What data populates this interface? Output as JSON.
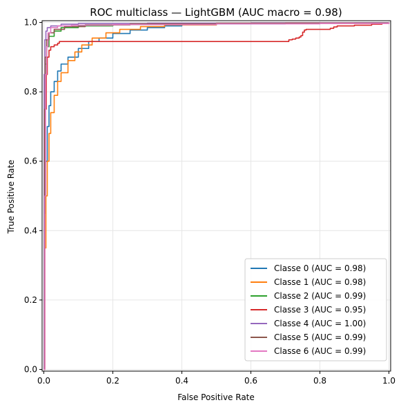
{
  "chart_data": {
    "type": "line",
    "title": "ROC multiclass — LightGBM (AUC macro = 0.98)",
    "xlabel": "False Positive Rate",
    "ylabel": "True Positive Rate",
    "xlim": [
      -0.005,
      1.005
    ],
    "ylim": [
      -0.005,
      1.005
    ],
    "x_ticks": [
      "0.0",
      "0.2",
      "0.4",
      "0.6",
      "0.8",
      "1.0"
    ],
    "y_ticks": [
      "0.0",
      "0.2",
      "0.4",
      "0.6",
      "0.8",
      "1.0"
    ],
    "x_tick_values": [
      0,
      0.2,
      0.4,
      0.6,
      0.8,
      1.0
    ],
    "y_tick_values": [
      0,
      0.2,
      0.4,
      0.6,
      0.8,
      1.0
    ],
    "grid": true,
    "legend_position": "lower-right",
    "series": [
      {
        "name": "Classe 0 (AUC = 0.98)",
        "color": "#1f77b4",
        "points": [
          [
            0,
            0
          ],
          [
            0.002,
            0.45
          ],
          [
            0.005,
            0.6
          ],
          [
            0.01,
            0.7
          ],
          [
            0.015,
            0.76
          ],
          [
            0.02,
            0.8
          ],
          [
            0.03,
            0.83
          ],
          [
            0.04,
            0.86
          ],
          [
            0.05,
            0.88
          ],
          [
            0.07,
            0.9
          ],
          [
            0.1,
            0.925
          ],
          [
            0.13,
            0.945
          ],
          [
            0.16,
            0.955
          ],
          [
            0.2,
            0.968
          ],
          [
            0.25,
            0.978
          ],
          [
            0.3,
            0.985
          ],
          [
            0.35,
            0.99
          ],
          [
            0.4,
            0.993
          ],
          [
            0.5,
            0.996
          ],
          [
            0.7,
            0.998
          ],
          [
            0.9,
            0.999
          ],
          [
            1.0,
            1.0
          ]
        ]
      },
      {
        "name": "Classe 1 (AUC = 0.98)",
        "color": "#ff7f0e",
        "points": [
          [
            0,
            0
          ],
          [
            0.003,
            0.35
          ],
          [
            0.006,
            0.5
          ],
          [
            0.01,
            0.6
          ],
          [
            0.015,
            0.68
          ],
          [
            0.02,
            0.74
          ],
          [
            0.03,
            0.79
          ],
          [
            0.04,
            0.83
          ],
          [
            0.05,
            0.855
          ],
          [
            0.07,
            0.89
          ],
          [
            0.09,
            0.915
          ],
          [
            0.11,
            0.935
          ],
          [
            0.14,
            0.955
          ],
          [
            0.18,
            0.97
          ],
          [
            0.22,
            0.98
          ],
          [
            0.28,
            0.988
          ],
          [
            0.35,
            0.993
          ],
          [
            0.5,
            0.997
          ],
          [
            0.7,
            0.999
          ],
          [
            1.0,
            1.0
          ]
        ]
      },
      {
        "name": "Classe 2 (AUC = 0.99)",
        "color": "#2ca02c",
        "points": [
          [
            0,
            0
          ],
          [
            0.002,
            0.7
          ],
          [
            0.004,
            0.88
          ],
          [
            0.008,
            0.93
          ],
          [
            0.015,
            0.96
          ],
          [
            0.03,
            0.975
          ],
          [
            0.05,
            0.985
          ],
          [
            0.1,
            0.99
          ],
          [
            0.2,
            0.994
          ],
          [
            0.4,
            0.997
          ],
          [
            0.7,
            0.998
          ],
          [
            1.0,
            1.0
          ]
        ]
      },
      {
        "name": "Classe 3 (AUC = 0.95)",
        "color": "#d62728",
        "points": [
          [
            0,
            0
          ],
          [
            0.002,
            0.6
          ],
          [
            0.004,
            0.75
          ],
          [
            0.007,
            0.85
          ],
          [
            0.01,
            0.9
          ],
          [
            0.015,
            0.92
          ],
          [
            0.02,
            0.93
          ],
          [
            0.03,
            0.935
          ],
          [
            0.04,
            0.94
          ],
          [
            0.045,
            0.945
          ],
          [
            0.7,
            0.945
          ],
          [
            0.71,
            0.95
          ],
          [
            0.72,
            0.952
          ],
          [
            0.73,
            0.955
          ],
          [
            0.74,
            0.958
          ],
          [
            0.745,
            0.962
          ],
          [
            0.75,
            0.972
          ],
          [
            0.755,
            0.978
          ],
          [
            0.76,
            0.98
          ],
          [
            0.82,
            0.98
          ],
          [
            0.83,
            0.983
          ],
          [
            0.84,
            0.987
          ],
          [
            0.85,
            0.99
          ],
          [
            0.9,
            0.992
          ],
          [
            0.95,
            0.995
          ],
          [
            0.98,
            0.998
          ],
          [
            1.0,
            1.0
          ]
        ]
      },
      {
        "name": "Classe 4 (AUC = 1.00)",
        "color": "#9467bd",
        "points": [
          [
            0,
            0
          ],
          [
            0.001,
            0.85
          ],
          [
            0.003,
            0.95
          ],
          [
            0.006,
            0.975
          ],
          [
            0.01,
            0.985
          ],
          [
            0.02,
            0.99
          ],
          [
            0.05,
            0.995
          ],
          [
            0.1,
            0.997
          ],
          [
            0.3,
            0.998
          ],
          [
            0.6,
            0.999
          ],
          [
            1.0,
            1.0
          ]
        ]
      },
      {
        "name": "Classe 5 (AUC = 0.99)",
        "color": "#8c564b",
        "points": [
          [
            0,
            0
          ],
          [
            0.002,
            0.75
          ],
          [
            0.004,
            0.9
          ],
          [
            0.008,
            0.95
          ],
          [
            0.015,
            0.97
          ],
          [
            0.03,
            0.98
          ],
          [
            0.06,
            0.988
          ],
          [
            0.12,
            0.993
          ],
          [
            0.25,
            0.996
          ],
          [
            0.5,
            0.998
          ],
          [
            1.0,
            1.0
          ]
        ]
      },
      {
        "name": "Classe 6 (AUC = 0.99)",
        "color": "#e377c2",
        "points": [
          [
            0,
            0
          ],
          [
            0.003,
            0.5
          ],
          [
            0.005,
            0.85
          ],
          [
            0.008,
            0.93
          ],
          [
            0.012,
            0.97
          ],
          [
            0.02,
            0.985
          ],
          [
            0.04,
            0.99
          ],
          [
            0.08,
            0.992
          ],
          [
            0.2,
            0.994
          ],
          [
            0.5,
            0.996
          ],
          [
            0.8,
            0.997
          ],
          [
            1.0,
            1.0
          ]
        ]
      }
    ]
  }
}
